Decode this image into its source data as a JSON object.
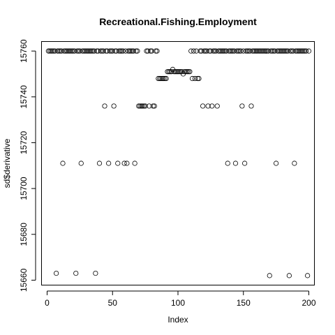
{
  "chart_data": {
    "type": "scatter",
    "title": "Recreational.Fishing.Employment",
    "xlabel": "Index",
    "ylabel": "sd$derivative",
    "xlim": [
      -4,
      204
    ],
    "ylim": [
      15658,
      15764
    ],
    "xticks": [
      0,
      50,
      100,
      150,
      200
    ],
    "yticks": [
      15660,
      15680,
      15700,
      15720,
      15740,
      15760
    ],
    "grid": false,
    "x": [
      1,
      2,
      3,
      4,
      5,
      6,
      7,
      8,
      9,
      10,
      11,
      12,
      13,
      14,
      15,
      16,
      17,
      18,
      19,
      20,
      21,
      22,
      23,
      24,
      25,
      26,
      27,
      28,
      29,
      30,
      31,
      32,
      33,
      34,
      35,
      36,
      37,
      38,
      39,
      40,
      41,
      42,
      43,
      44,
      45,
      46,
      47,
      48,
      49,
      50,
      51,
      52,
      53,
      54,
      55,
      56,
      57,
      58,
      59,
      60,
      61,
      62,
      63,
      64,
      65,
      66,
      67,
      68,
      69,
      70,
      71,
      72,
      73,
      74,
      75,
      76,
      77,
      78,
      79,
      80,
      81,
      82,
      83,
      84,
      85,
      86,
      87,
      88,
      89,
      90,
      91,
      92,
      93,
      94,
      95,
      96,
      97,
      98,
      99,
      100,
      101,
      102,
      103,
      104,
      105,
      106,
      107,
      108,
      109,
      110,
      111,
      112,
      113,
      114,
      115,
      116,
      117,
      118,
      119,
      120,
      121,
      122,
      123,
      124,
      125,
      126,
      127,
      128,
      129,
      130,
      131,
      132,
      133,
      134,
      135,
      136,
      137,
      138,
      139,
      140,
      141,
      142,
      143,
      144,
      145,
      146,
      147,
      148,
      149,
      150,
      151,
      152,
      153,
      154,
      155,
      156,
      157,
      158,
      159,
      160,
      161,
      162,
      163,
      164,
      165,
      166,
      167,
      168,
      169,
      170,
      171,
      172,
      173,
      174,
      175,
      176,
      177,
      178,
      179,
      180,
      181,
      182,
      183,
      184,
      185,
      186,
      187,
      188,
      189,
      190,
      191,
      192,
      193,
      194,
      195,
      196,
      197,
      198,
      199,
      200
    ],
    "y": [
      15760,
      15760,
      15760,
      15760,
      15760,
      15760,
      15663,
      15760,
      15760,
      15760,
      15760,
      15711,
      15760,
      15760,
      15760,
      15760,
      15760,
      15760,
      15760,
      15760,
      15760,
      15663,
      15760,
      15760,
      15760,
      15711,
      15760,
      15760,
      15760,
      15760,
      15760,
      15760,
      15760,
      15760,
      15760,
      15760,
      15663,
      15760,
      15760,
      15711,
      15760,
      15760,
      15760,
      15736,
      15760,
      15760,
      15711,
      15760,
      15760,
      15760,
      15736,
      15760,
      15760,
      15711,
      15760,
      15760,
      15760,
      15760,
      15711,
      15760,
      15711,
      15760,
      15760,
      15760,
      15760,
      15760,
      15711,
      15760,
      15760,
      15736,
      15736,
      15736,
      15736,
      15736,
      15736,
      15760,
      15760,
      15736,
      15760,
      15760,
      15736,
      15736,
      15760,
      15760,
      15748,
      15748,
      15748,
      15748,
      15748,
      15748,
      15748,
      15751,
      15751,
      15751,
      15751,
      15752,
      15751,
      15751,
      15751,
      15751,
      15751,
      15751,
      15751,
      15750,
      15751,
      15751,
      15751,
      15751,
      15751,
      15760,
      15748,
      15760,
      15748,
      15760,
      15748,
      15748,
      15760,
      15760,
      15736,
      15760,
      15760,
      15760,
      15736,
      15760,
      15760,
      15736,
      15760,
      15760,
      15760,
      15736,
      15760,
      15760,
      15760,
      15760,
      15760,
      15760,
      15760,
      15711,
      15760,
      15760,
      15760,
      15760,
      15760,
      15711,
      15760,
      15760,
      15760,
      15760,
      15736,
      15760,
      15711,
      15760,
      15760,
      15760,
      15760,
      15736,
      15760,
      15760,
      15760,
      15760,
      15760,
      15760,
      15760,
      15760,
      15760,
      15760,
      15760,
      15760,
      15760,
      15662,
      15760,
      15760,
      15760,
      15760,
      15711,
      15760,
      15760,
      15760,
      15760,
      15760,
      15760,
      15760,
      15760,
      15760,
      15662,
      15760,
      15760,
      15760,
      15711,
      15760,
      15760,
      15760,
      15760,
      15760,
      15760,
      15760,
      15760,
      15760,
      15662,
      15760
    ]
  }
}
